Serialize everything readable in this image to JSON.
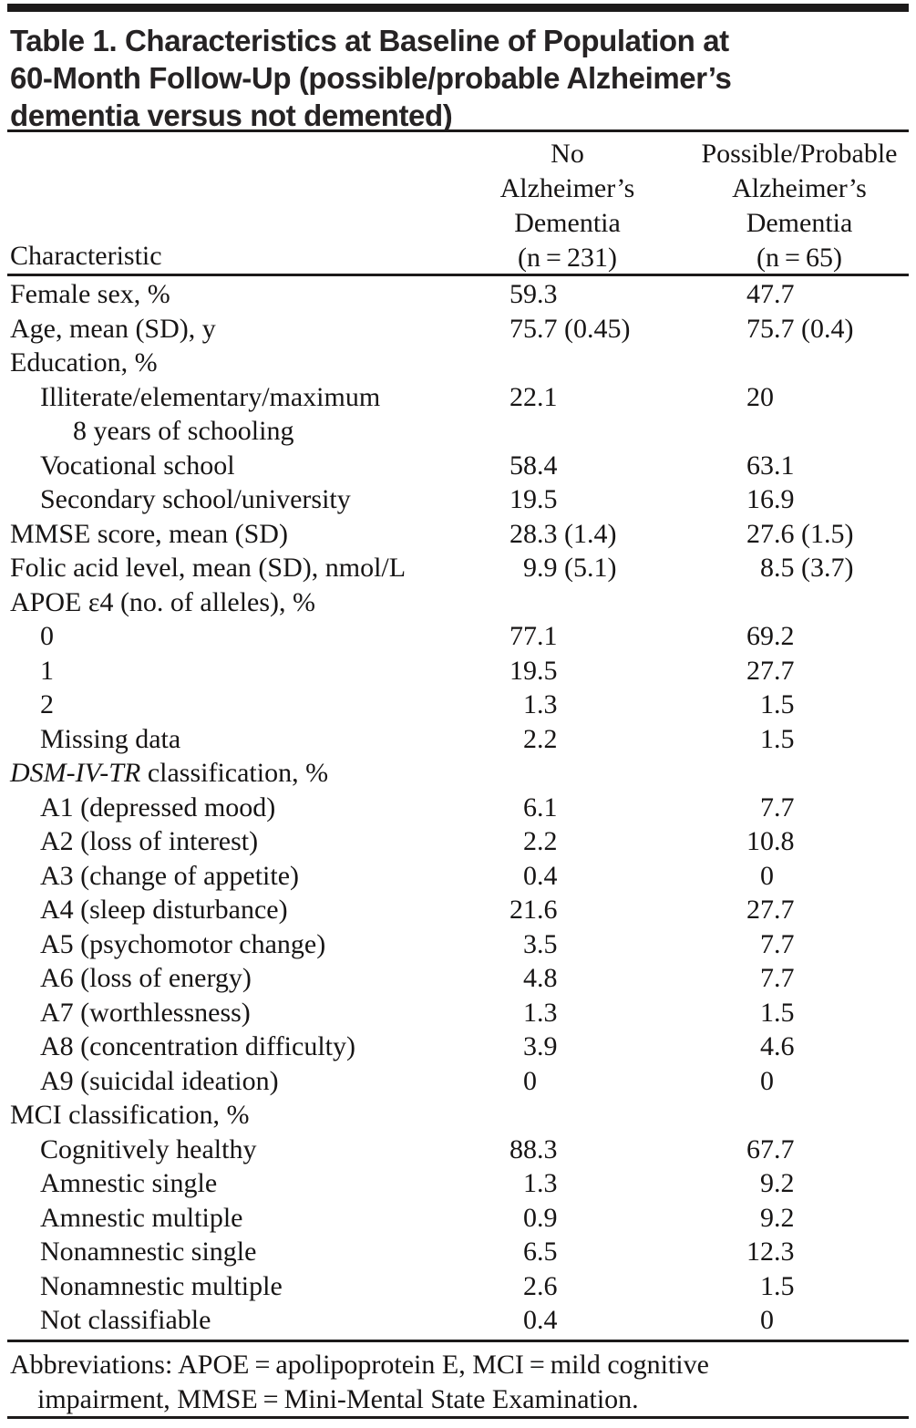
{
  "title": {
    "lines": [
      "Table 1. Characteristics at Baseline of Population at",
      "60-Month Follow-Up (possible/probable Alzheimer’s",
      "dementia versus not demented)"
    ]
  },
  "header": {
    "characteristic_label": "Characteristic",
    "col_no_ad_lines": [
      "No",
      "Alzheimer’s",
      "Dementia",
      "(n = 231)"
    ],
    "col_ad_lines": [
      "Possible/Probable",
      "Alzheimer’s",
      "Dementia",
      "(n = 65)"
    ]
  },
  "table": {
    "columns": [
      "Characteristic",
      "No Alzheimer's Dementia (n = 231)",
      "Possible/Probable Alzheimer's Dementia (n = 65)"
    ],
    "rows": [
      {
        "label": "Female sex, %",
        "indent": 0,
        "c1": "59.3",
        "c2": "47.7"
      },
      {
        "label": "Age, mean (SD), y",
        "indent": 0,
        "c1": "75.7 (0.45)",
        "c2": "75.7 (0.4)"
      },
      {
        "label": "Education, %",
        "indent": 0
      },
      {
        "label": "Illiterate/elementary/maximum",
        "label2": "8 years of schooling",
        "indent": 1,
        "c1": "22.1",
        "c2": "20"
      },
      {
        "label": "Vocational school",
        "indent": 1,
        "c1": "58.4",
        "c2": "63.1"
      },
      {
        "label": "Secondary school/university",
        "indent": 1,
        "c1": "19.5",
        "c2": "16.9"
      },
      {
        "label": "MMSE score, mean (SD)",
        "indent": 0,
        "c1": "28.3 (1.4)",
        "c2": "27.6 (1.5)"
      },
      {
        "label": "Folic acid level, mean (SD), nmol/L",
        "indent": 0,
        "c1": "9.9 (5.1)",
        "c2": "8.5 (3.7)"
      },
      {
        "label": "APOE ε4 (no. of alleles), %",
        "indent": 0
      },
      {
        "label": "0",
        "indent": 1,
        "c1": "77.1",
        "c2": "69.2"
      },
      {
        "label": "1",
        "indent": 1,
        "c1": "19.5",
        "c2": "27.7"
      },
      {
        "label": "2",
        "indent": 1,
        "c1": "1.3",
        "c2": "1.5"
      },
      {
        "label": "Missing data",
        "indent": 1,
        "c1": "2.2",
        "c2": "1.5"
      },
      {
        "label_italic": "DSM-IV-TR",
        "label": " classification, %",
        "indent": 0
      },
      {
        "label": "A1 (depressed mood)",
        "indent": 1,
        "c1": "6.1",
        "c2": "7.7"
      },
      {
        "label": "A2 (loss of interest)",
        "indent": 1,
        "c1": "2.2",
        "c2": "10.8"
      },
      {
        "label": "A3 (change of appetite)",
        "indent": 1,
        "c1": "0.4",
        "c2": "0"
      },
      {
        "label": "A4 (sleep disturbance)",
        "indent": 1,
        "c1": "21.6",
        "c2": "27.7"
      },
      {
        "label": "A5 (psychomotor change)",
        "indent": 1,
        "c1": "3.5",
        "c2": "7.7"
      },
      {
        "label": "A6 (loss of energy)",
        "indent": 1,
        "c1": "4.8",
        "c2": "7.7"
      },
      {
        "label": "A7 (worthlessness)",
        "indent": 1,
        "c1": "1.3",
        "c2": "1.5"
      },
      {
        "label": "A8 (concentration difficulty)",
        "indent": 1,
        "c1": "3.9",
        "c2": "4.6"
      },
      {
        "label": "A9 (suicidal ideation)",
        "indent": 1,
        "c1": "0",
        "c2": "0"
      },
      {
        "label": "MCI classification, %",
        "indent": 0
      },
      {
        "label": "Cognitively healthy",
        "indent": 1,
        "c1": "88.3",
        "c2": "67.7"
      },
      {
        "label": "Amnestic single",
        "indent": 1,
        "c1": "1.3",
        "c2": "9.2"
      },
      {
        "label": "Amnestic multiple",
        "indent": 1,
        "c1": "0.9",
        "c2": "9.2"
      },
      {
        "label": "Nonamnestic single",
        "indent": 1,
        "c1": "6.5",
        "c2": "12.3"
      },
      {
        "label": "Nonamnestic multiple",
        "indent": 1,
        "c1": "2.6",
        "c2": "1.5"
      },
      {
        "label": "Not classifiable",
        "indent": 1,
        "c1": "0.4",
        "c2": "0"
      }
    ]
  },
  "footer": {
    "line1": "Abbreviations: APOE = apolipoprotein E, MCI = mild cognitive",
    "line2": "impairment, MMSE = Mini-Mental State Examination."
  },
  "colors": {
    "text": "#171515",
    "rule": "#1c1a1a",
    "background": "#ffffff"
  }
}
